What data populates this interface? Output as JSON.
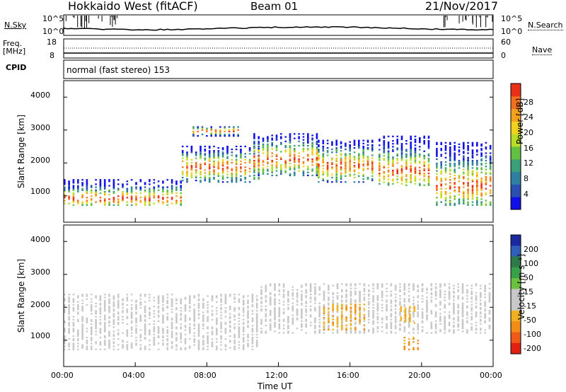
{
  "header": {
    "radar": "Hokkaido West (fitACF)",
    "beam": "Beam 01",
    "date": "21/Nov/2017"
  },
  "status_panel": {
    "nsky_label": "N.Sky",
    "nsearch_label": "N.Search",
    "noise_ticks": [
      "10^5",
      "10^0"
    ],
    "freq_label_1": "Freq.",
    "freq_label_2": "[MHz]",
    "freq_ticks": [
      "18",
      "8"
    ],
    "nave_label": "Nave",
    "nave_ticks": [
      "60",
      "0"
    ],
    "cpid_label": "CPID",
    "cpid_value": "normal (fast stereo) 153"
  },
  "chart_data": [
    {
      "type": "heatmap",
      "name": "power",
      "xlabel": "",
      "ylabel": "Slant Range [km]",
      "x": [
        "00:00",
        "04:00",
        "08:00",
        "12:00",
        "16:00",
        "20:00",
        "00:00"
      ],
      "xlim": [
        0,
        24
      ],
      "ylim": [
        200,
        4500
      ],
      "yticks": [
        "1000",
        "2000",
        "3000",
        "4000"
      ],
      "colorbar": {
        "label": "Power [dB]",
        "ticks": [
          "4",
          "8",
          "12",
          "16",
          "20",
          "24",
          "28"
        ],
        "range": [
          0,
          30
        ],
        "colors": [
          "#1010e6",
          "#2a50b0",
          "#2e7fa0",
          "#3aa07a",
          "#64c040",
          "#b8dc28",
          "#f0d020",
          "#f5a020",
          "#f07020",
          "#e83018"
        ]
      },
      "echo_bands": [
        {
          "t0": 0.0,
          "t1": 6.6,
          "r0": 700,
          "r1": 1500,
          "peak": 900
        },
        {
          "t0": 6.6,
          "t1": 11.0,
          "r0": 1400,
          "r1": 2500,
          "peak": 1850
        },
        {
          "t0": 7.2,
          "t1": 9.8,
          "r0": 2800,
          "r1": 3100,
          "peak": 2950
        },
        {
          "t0": 10.6,
          "t1": 14.2,
          "r0": 1600,
          "r1": 2900,
          "peak": 2100
        },
        {
          "t0": 14.2,
          "t1": 17.4,
          "r0": 1400,
          "r1": 2700,
          "peak": 1900
        },
        {
          "t0": 17.6,
          "t1": 20.5,
          "r0": 1300,
          "r1": 2800,
          "peak": 1750
        },
        {
          "t0": 20.8,
          "t1": 24.0,
          "r0": 700,
          "r1": 2600,
          "peak": 1300
        }
      ]
    },
    {
      "type": "heatmap",
      "name": "velocity",
      "xlabel": "Time UT",
      "ylabel": "Slant Range [km]",
      "x": [
        "00:00",
        "04:00",
        "08:00",
        "12:00",
        "16:00",
        "20:00",
        "00:00"
      ],
      "xlim": [
        0,
        24
      ],
      "ylim": [
        200,
        4500
      ],
      "yticks": [
        "1000",
        "2000",
        "3000",
        "4000"
      ],
      "colorbar": {
        "label": "Velocity [m s⁻¹]",
        "ticks": [
          "200",
          "100",
          "50",
          "15",
          "-15",
          "-50",
          "-100",
          "-200"
        ],
        "range": [
          -250,
          250
        ],
        "colors": [
          "#1a2a9e",
          "#2f5fb8",
          "#2e7a4a",
          "#38a048",
          "#6cc040",
          "#c8c8c8",
          "#c8c8c8",
          "#f0b020",
          "#f08c18",
          "#f05a18",
          "#e02010"
        ]
      },
      "features": [
        {
          "t0": 0.0,
          "t1": 11.0,
          "r0": 700,
          "r1": 2400,
          "v": 0
        },
        {
          "t0": 11.0,
          "t1": 24.0,
          "r0": 1200,
          "r1": 2700,
          "v": 0
        },
        {
          "t0": 14.5,
          "t1": 16.8,
          "r0": 1300,
          "r1": 2100,
          "v": -120
        },
        {
          "t0": 18.8,
          "t1": 19.8,
          "r0": 1500,
          "r1": 2000,
          "v": -110
        },
        {
          "t0": 19.0,
          "t1": 20.0,
          "r0": 700,
          "r1": 1100,
          "v": -130
        }
      ]
    }
  ]
}
